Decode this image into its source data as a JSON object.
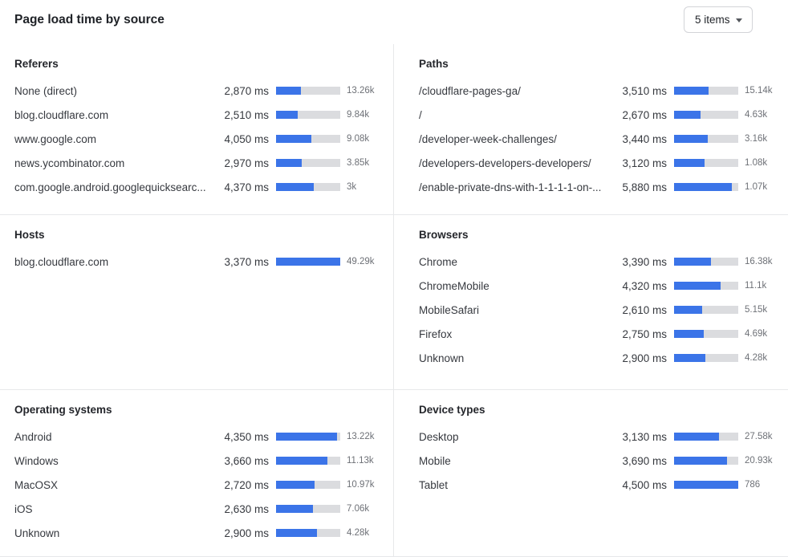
{
  "header": {
    "title": "Page load time by source",
    "items_select": {
      "value": "5 items"
    }
  },
  "colors": {
    "bar_fill": "#3b74e8",
    "bar_track": "#dbdcdf"
  },
  "chart_data": [
    {
      "type": "bar",
      "orientation": "horizontal",
      "title": "Referers",
      "unit": "ms",
      "rows": [
        {
          "label": "None (direct)",
          "value_ms": 2870,
          "value_display": "2,870 ms",
          "count_display": "13.26k",
          "bar_pct": 38.6
        },
        {
          "label": "blog.cloudflare.com",
          "value_ms": 2510,
          "value_display": "2,510 ms",
          "count_display": "9.84k",
          "bar_pct": 33.8
        },
        {
          "label": "www.google.com",
          "value_ms": 4050,
          "value_display": "4,050 ms",
          "count_display": "9.08k",
          "bar_pct": 54.5
        },
        {
          "label": "news.ycombinator.com",
          "value_ms": 2970,
          "value_display": "2,970 ms",
          "count_display": "3.85k",
          "bar_pct": 40.0
        },
        {
          "label": "com.google.android.googlequicksearc...",
          "value_ms": 4370,
          "value_display": "4,370 ms",
          "count_display": "3k",
          "bar_pct": 58.8
        }
      ]
    },
    {
      "type": "bar",
      "orientation": "horizontal",
      "title": "Paths",
      "unit": "ms",
      "rows": [
        {
          "label": "/cloudflare-pages-ga/",
          "value_ms": 3510,
          "value_display": "3,510 ms",
          "count_display": "15.14k",
          "bar_pct": 53.7
        },
        {
          "label": "/",
          "value_ms": 2670,
          "value_display": "2,670 ms",
          "count_display": "4.63k",
          "bar_pct": 40.9
        },
        {
          "label": "/developer-week-challenges/",
          "value_ms": 3440,
          "value_display": "3,440 ms",
          "count_display": "3.16k",
          "bar_pct": 52.7
        },
        {
          "label": "/developers-developers-developers/",
          "value_ms": 3120,
          "value_display": "3,120 ms",
          "count_display": "1.08k",
          "bar_pct": 47.8
        },
        {
          "label": "/enable-private-dns-with-1-1-1-1-on-...",
          "value_ms": 5880,
          "value_display": "5,880 ms",
          "count_display": "1.07k",
          "bar_pct": 90.0
        }
      ]
    },
    {
      "type": "bar",
      "orientation": "horizontal",
      "title": "Hosts",
      "unit": "ms",
      "rows": [
        {
          "label": "blog.cloudflare.com",
          "value_ms": 3370,
          "value_display": "3,370 ms",
          "count_display": "49.29k",
          "bar_pct": 100
        }
      ]
    },
    {
      "type": "bar",
      "orientation": "horizontal",
      "title": "Browsers",
      "unit": "ms",
      "rows": [
        {
          "label": "Chrome",
          "value_ms": 3390,
          "value_display": "3,390 ms",
          "count_display": "16.38k",
          "bar_pct": 57.0
        },
        {
          "label": "ChromeMobile",
          "value_ms": 4320,
          "value_display": "4,320 ms",
          "count_display": "11.1k",
          "bar_pct": 72.6
        },
        {
          "label": "MobileSafari",
          "value_ms": 2610,
          "value_display": "2,610 ms",
          "count_display": "5.15k",
          "bar_pct": 43.9
        },
        {
          "label": "Firefox",
          "value_ms": 2750,
          "value_display": "2,750 ms",
          "count_display": "4.69k",
          "bar_pct": 46.2
        },
        {
          "label": "Unknown",
          "value_ms": 2900,
          "value_display": "2,900 ms",
          "count_display": "4.28k",
          "bar_pct": 48.7
        }
      ]
    },
    {
      "type": "bar",
      "orientation": "horizontal",
      "title": "Operating systems",
      "unit": "ms",
      "rows": [
        {
          "label": "Android",
          "value_ms": 4350,
          "value_display": "4,350 ms",
          "count_display": "13.22k",
          "bar_pct": 95.0
        },
        {
          "label": "Windows",
          "value_ms": 3660,
          "value_display": "3,660 ms",
          "count_display": "11.13k",
          "bar_pct": 79.9
        },
        {
          "label": "MacOSX",
          "value_ms": 2720,
          "value_display": "2,720 ms",
          "count_display": "10.97k",
          "bar_pct": 59.4
        },
        {
          "label": "iOS",
          "value_ms": 2630,
          "value_display": "2,630 ms",
          "count_display": "7.06k",
          "bar_pct": 57.4
        },
        {
          "label": "Unknown",
          "value_ms": 2900,
          "value_display": "2,900 ms",
          "count_display": "4.28k",
          "bar_pct": 63.3
        }
      ]
    },
    {
      "type": "bar",
      "orientation": "horizontal",
      "title": "Device types",
      "unit": "ms",
      "rows": [
        {
          "label": "Desktop",
          "value_ms": 3130,
          "value_display": "3,130 ms",
          "count_display": "27.58k",
          "bar_pct": 69.6
        },
        {
          "label": "Mobile",
          "value_ms": 3690,
          "value_display": "3,690 ms",
          "count_display": "20.93k",
          "bar_pct": 82.0
        },
        {
          "label": "Tablet",
          "value_ms": 4500,
          "value_display": "4,500 ms",
          "count_display": "786",
          "bar_pct": 100
        }
      ]
    }
  ]
}
